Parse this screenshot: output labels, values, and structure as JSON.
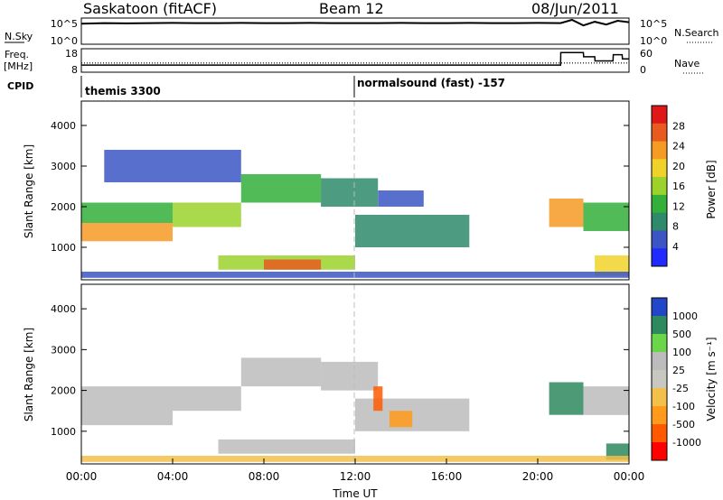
{
  "header": {
    "station": "Saskatoon (fitACF)",
    "beam": "Beam 12",
    "date": "08/Jun/2011"
  },
  "colors": {
    "frame": "#000000",
    "scan_marker": "#bbbbbb",
    "power_scale": [
      "#1f2bff",
      "#3b56c4",
      "#2e8a6a",
      "#33b03a",
      "#9bd22c",
      "#f0d32a",
      "#f59a23",
      "#e85a1f",
      "#e01717"
    ],
    "velocity_scale": [
      "#ff0000",
      "#ff5a00",
      "#ff9a1a",
      "#f3c04a",
      "#c8c8c0",
      "#bcbcbc",
      "#6cd64a",
      "#2e8a5e",
      "#2246c8"
    ]
  },
  "chart_data": [
    {
      "type": "line",
      "panel": "sky-noise-search-noise",
      "left_label": "N.Sky",
      "right_label": "N.Search",
      "left_ticks": [
        "10^5",
        "10^0"
      ],
      "right_ticks": [
        "10^5",
        "10^0"
      ],
      "x_hours": [
        0,
        1,
        2,
        3,
        4,
        5,
        6,
        7,
        8,
        9,
        10,
        11,
        12,
        13,
        14,
        15,
        16,
        17,
        18,
        19,
        20,
        21,
        21.5,
        22,
        22.5,
        23,
        23.5,
        24
      ],
      "series": [
        {
          "values": [
            4.2,
            4.3,
            4.25,
            4.3,
            4.35,
            4.3,
            4.3,
            4.35,
            4.3,
            4.3,
            4.35,
            4.3,
            4.3,
            4.3,
            4.35,
            4.3,
            4.3,
            4.35,
            4.3,
            4.3,
            4.35,
            4.3,
            5.0,
            3.8,
            4.6,
            4.0,
            4.8,
            4.5
          ]
        }
      ]
    },
    {
      "type": "line",
      "panel": "frequency-nave",
      "left_label": "Freq.",
      "left_unit": "[MHz]",
      "right_label": "Nave",
      "left_ticks": [
        "18",
        "8"
      ],
      "right_ticks": [
        "60",
        "0"
      ],
      "x_hours": [
        0,
        21,
        21.01,
        22,
        22.01,
        22.5,
        22.51,
        23.3,
        23.31,
        23.7,
        23.71,
        24
      ],
      "series": [
        {
          "name": "Freq.",
          "values": [
            11,
            11,
            17,
            17,
            15,
            15,
            13,
            13,
            16,
            16,
            14,
            14
          ]
        },
        {
          "name": "Nave",
          "values": [
            24,
            24,
            24,
            24,
            24,
            24,
            24,
            24,
            24,
            24,
            24,
            24
          ]
        }
      ]
    },
    {
      "type": "table",
      "panel": "cpid",
      "label": "CPID",
      "entries": [
        {
          "start_hour": 0,
          "text": "themis 3300"
        },
        {
          "start_hour": 12,
          "text": "normalsound (fast) -157"
        }
      ]
    },
    {
      "type": "heatmap",
      "panel": "power",
      "ylabel": "Slant Range [km]",
      "yticks": [
        1000,
        2000,
        3000,
        4000
      ],
      "ylim": [
        200,
        4600
      ],
      "xlim": [
        0,
        24
      ],
      "colorbar_label": "Power [dB]",
      "colorbar_ticks": [
        4,
        8,
        12,
        16,
        20,
        24,
        28
      ],
      "colorbar_range": [
        0,
        32
      ],
      "bands": [
        {
          "start": 0,
          "end": 4,
          "range_start": 1150,
          "range_end": 1600,
          "value": 24
        },
        {
          "start": 0,
          "end": 4,
          "range_start": 1600,
          "range_end": 2100,
          "value": 14
        },
        {
          "start": 4,
          "end": 7,
          "range_start": 1500,
          "range_end": 2100,
          "value": 16
        },
        {
          "start": 7,
          "end": 10.5,
          "range_start": 2100,
          "range_end": 2800,
          "value": 12
        },
        {
          "start": 10.5,
          "end": 13,
          "range_start": 2000,
          "range_end": 2700,
          "value": 8
        },
        {
          "start": 1,
          "end": 7,
          "range_start": 2600,
          "range_end": 3400,
          "value": 6
        },
        {
          "start": 6,
          "end": 12,
          "range_start": 450,
          "range_end": 800,
          "value": 16
        },
        {
          "start": 8,
          "end": 10.5,
          "range_start": 450,
          "range_end": 700,
          "value": 26
        },
        {
          "start": 12,
          "end": 17,
          "range_start": 1000,
          "range_end": 1800,
          "value": 8
        },
        {
          "start": 13,
          "end": 15,
          "range_start": 2000,
          "range_end": 2400,
          "value": 6
        },
        {
          "start": 20.5,
          "end": 22,
          "range_start": 1500,
          "range_end": 2200,
          "value": 22
        },
        {
          "start": 22,
          "end": 24,
          "range_start": 1400,
          "range_end": 2100,
          "value": 12
        },
        {
          "start": 22.5,
          "end": 24,
          "range_start": 300,
          "range_end": 800,
          "value": 18
        },
        {
          "start": 0,
          "end": 24,
          "range_start": 250,
          "range_end": 400,
          "value": 6
        }
      ]
    },
    {
      "type": "heatmap",
      "panel": "velocity",
      "ylabel": "Slant Range [km]",
      "yticks": [
        1000,
        2000,
        3000,
        4000
      ],
      "ylim": [
        200,
        4600
      ],
      "xlim": [
        0,
        24
      ],
      "xlabel": "Time UT",
      "xticks": [
        "00:00",
        "04:00",
        "08:00",
        "12:00",
        "16:00",
        "20:00",
        "00:00"
      ],
      "colorbar_label": "Velocity [m s⁻¹]",
      "colorbar_ticks": [
        "1000",
        "500",
        "100",
        "25",
        "-25",
        "-100",
        "-500",
        "-1000"
      ],
      "bands": [
        {
          "start": 0,
          "end": 4,
          "range_start": 1150,
          "range_end": 2100,
          "value": 0
        },
        {
          "start": 4,
          "end": 7,
          "range_start": 1500,
          "range_end": 2100,
          "value": 0
        },
        {
          "start": 7,
          "end": 10.5,
          "range_start": 2100,
          "range_end": 2800,
          "value": 0
        },
        {
          "start": 10.5,
          "end": 13,
          "range_start": 2000,
          "range_end": 2700,
          "value": 0
        },
        {
          "start": 6,
          "end": 12,
          "range_start": 450,
          "range_end": 800,
          "value": 0
        },
        {
          "start": 12,
          "end": 17,
          "range_start": 1000,
          "range_end": 1800,
          "value": 0
        },
        {
          "start": 13.5,
          "end": 14.5,
          "range_start": 1100,
          "range_end": 1500,
          "value": -300
        },
        {
          "start": 12.8,
          "end": 13.2,
          "range_start": 1500,
          "range_end": 2100,
          "value": -500
        },
        {
          "start": 20.5,
          "end": 22,
          "range_start": 1400,
          "range_end": 2200,
          "value": 300
        },
        {
          "start": 22,
          "end": 24,
          "range_start": 1400,
          "range_end": 2100,
          "value": 0
        },
        {
          "start": 23,
          "end": 24,
          "range_start": 300,
          "range_end": 700,
          "value": 300
        },
        {
          "start": 0,
          "end": 24,
          "range_start": 250,
          "range_end": 400,
          "value": -60
        }
      ]
    }
  ]
}
